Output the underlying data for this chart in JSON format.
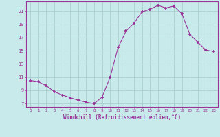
{
  "x": [
    0,
    1,
    2,
    3,
    4,
    5,
    6,
    7,
    8,
    9,
    10,
    11,
    12,
    13,
    14,
    15,
    16,
    17,
    18,
    19,
    20,
    21,
    22,
    23
  ],
  "y": [
    10.5,
    10.3,
    9.7,
    8.8,
    8.3,
    7.9,
    7.5,
    7.2,
    7.0,
    8.0,
    11.0,
    15.5,
    18.0,
    19.2,
    20.9,
    21.3,
    21.9,
    21.5,
    21.8,
    20.6,
    17.5,
    16.3,
    15.1,
    14.9
  ],
  "bg_color": "#c8eaea",
  "line_color": "#993399",
  "marker_color": "#993399",
  "grid_color": "#aacfcf",
  "xlabel": "Windchill (Refroidissement éolien,°C)",
  "xlabel_color": "#993399",
  "tick_color": "#993399",
  "spine_color": "#993399",
  "ylim": [
    6.5,
    22.5
  ],
  "xlim": [
    -0.5,
    23.5
  ],
  "yticks": [
    7,
    9,
    11,
    13,
    15,
    17,
    19,
    21
  ],
  "xticks": [
    0,
    1,
    2,
    3,
    4,
    5,
    6,
    7,
    8,
    9,
    10,
    11,
    12,
    13,
    14,
    15,
    16,
    17,
    18,
    19,
    20,
    21,
    22,
    23
  ],
  "xtick_labels": [
    "0",
    "1",
    "2",
    "3",
    "4",
    "5",
    "6",
    "7",
    "8",
    "9",
    "10",
    "11",
    "12",
    "13",
    "14",
    "15",
    "16",
    "17",
    "18",
    "19",
    "20",
    "21",
    "22",
    "23"
  ]
}
